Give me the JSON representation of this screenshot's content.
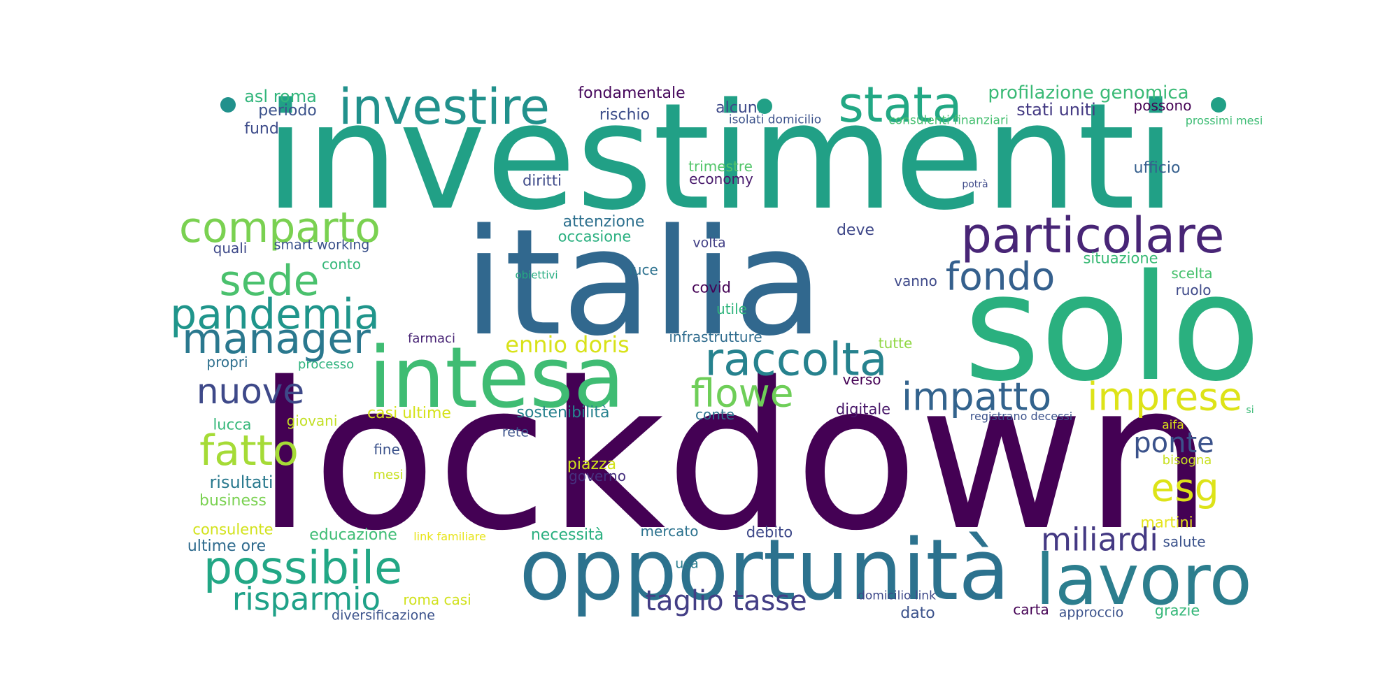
{
  "words": [
    {
      "text": "lockdown",
      "color": "#440154"
    },
    {
      "text": "investimenti",
      "color": "#21a086"
    },
    {
      "text": "italia",
      "color": "#31688e"
    },
    {
      "text": "solo",
      "color": "#2ab07f"
    },
    {
      "text": "opportunità",
      "color": "#2c728e"
    },
    {
      "text": "intesa",
      "color": "#3fbc73"
    },
    {
      "text": "lavoro",
      "color": "#2c7e8e"
    },
    {
      "text": "investire",
      "color": "#21918c"
    },
    {
      "text": "particolare",
      "color": "#482576"
    },
    {
      "text": "stata",
      "color": "#22a884"
    },
    {
      "text": "raccolta",
      "color": "#26828e"
    },
    {
      "text": "possibile",
      "color": "#22a785"
    },
    {
      "text": "comparto",
      "color": "#7ad151"
    },
    {
      "text": "sede",
      "color": "#4ac16d"
    },
    {
      "text": "pandemia",
      "color": "#1f958b"
    },
    {
      "text": "manager",
      "color": "#2a788e"
    },
    {
      "text": "fondo",
      "color": "#35608d"
    },
    {
      "text": "impatto",
      "color": "#33638d"
    },
    {
      "text": "imprese",
      "color": "#dde318"
    },
    {
      "text": "fatto",
      "color": "#a5db36"
    },
    {
      "text": "flowe",
      "color": "#6ece58"
    },
    {
      "text": "nuove",
      "color": "#3e4989"
    },
    {
      "text": "miliardi",
      "color": "#443983"
    },
    {
      "text": "risparmio",
      "color": "#1fa188"
    },
    {
      "text": "esg",
      "color": "#dde318"
    },
    {
      "text": "ponte",
      "color": "#3b528b"
    },
    {
      "text": "taglio tasse",
      "color": "#433e85"
    },
    {
      "text": "ennio doris",
      "color": "#d8e219"
    },
    {
      "text": "profilazione genomica",
      "color": "#3aba76"
    },
    {
      "text": "fondamentale",
      "color": "#46085c"
    },
    {
      "text": "rischio",
      "color": "#3d4e8a"
    },
    {
      "text": "alcuni",
      "color": "#3e4a89"
    },
    {
      "text": "asl roma",
      "color": "#31b57b"
    },
    {
      "text": "periodo",
      "color": "#3b528b"
    },
    {
      "text": "fund",
      "color": "#3e4c8a"
    },
    {
      "text": "isolati domicilio",
      "color": "#3b528b"
    },
    {
      "text": "consulenti finanziari",
      "color": "#45bf70"
    },
    {
      "text": "stati uniti",
      "color": "#443a83"
    },
    {
      "text": "possono",
      "color": "#440154"
    },
    {
      "text": "prossimi mesi",
      "color": "#3dbc74"
    },
    {
      "text": "trimestre",
      "color": "#52c569"
    },
    {
      "text": "economy",
      "color": "#481a6c"
    },
    {
      "text": "ufficio",
      "color": "#355f8d"
    },
    {
      "text": "diritti",
      "color": "#3e4a89"
    },
    {
      "text": "potrà",
      "color": "#3e4989"
    },
    {
      "text": "attenzione",
      "color": "#2d708e"
    },
    {
      "text": "occasione",
      "color": "#29af7f"
    },
    {
      "text": "deve",
      "color": "#3f4889"
    },
    {
      "text": "quali",
      "color": "#3e4989"
    },
    {
      "text": "smart working",
      "color": "#3b528b"
    },
    {
      "text": "volta",
      "color": "#424086"
    },
    {
      "text": "conto",
      "color": "#35b779"
    },
    {
      "text": "obiettivi",
      "color": "#26ad81"
    },
    {
      "text": "luce",
      "color": "#2c718e"
    },
    {
      "text": "situazione",
      "color": "#3aba76"
    },
    {
      "text": "scelta",
      "color": "#48c16e"
    },
    {
      "text": "covid",
      "color": "#440154"
    },
    {
      "text": "vanno",
      "color": "#3e4989"
    },
    {
      "text": "ruolo",
      "color": "#3e4989"
    },
    {
      "text": "utile",
      "color": "#2fb47c"
    },
    {
      "text": "farmaci",
      "color": "#482475"
    },
    {
      "text": "infrastrutture",
      "color": "#2f6c8e"
    },
    {
      "text": "tutte",
      "color": "#90d743"
    },
    {
      "text": "propri",
      "color": "#2e6f8e"
    },
    {
      "text": "processo",
      "color": "#2db27d"
    },
    {
      "text": "verso",
      "color": "#440154"
    },
    {
      "text": "casi ultime",
      "color": "#d5e21a"
    },
    {
      "text": "sostenibilità",
      "color": "#26818e"
    },
    {
      "text": "digitale",
      "color": "#481769"
    },
    {
      "text": "registrano decessi",
      "color": "#3b528b"
    },
    {
      "text": "si",
      "color": "#3aba76"
    },
    {
      "text": "conte",
      "color": "#2c728e"
    },
    {
      "text": "lucca",
      "color": "#35b779"
    },
    {
      "text": "giovani",
      "color": "#c2df23"
    },
    {
      "text": "aifa",
      "color": "#dde318"
    },
    {
      "text": "rete",
      "color": "#3b528b"
    },
    {
      "text": "fine",
      "color": "#3b528b"
    },
    {
      "text": "mesi",
      "color": "#c8e020"
    },
    {
      "text": "piazza",
      "color": "#d2e21b"
    },
    {
      "text": "bisogna",
      "color": "#c8e020"
    },
    {
      "text": "risultati",
      "color": "#29798e"
    },
    {
      "text": "governo",
      "color": "#46307e"
    },
    {
      "text": "business",
      "color": "#7ad151"
    },
    {
      "text": "consulente",
      "color": "#d2e21b"
    },
    {
      "text": "martini",
      "color": "#e5e419"
    },
    {
      "text": "educazione",
      "color": "#3dbc74"
    },
    {
      "text": "link familiare",
      "color": "#e7e419"
    },
    {
      "text": "necessità",
      "color": "#29af7f"
    },
    {
      "text": "mercato",
      "color": "#2c728e"
    },
    {
      "text": "debito",
      "color": "#3e4989"
    },
    {
      "text": "ultime ore",
      "color": "#2f6b8e"
    },
    {
      "text": "salute",
      "color": "#3b528b"
    },
    {
      "text": "usa",
      "color": "#287c8e"
    },
    {
      "text": "domicilio link",
      "color": "#3e4989"
    },
    {
      "text": "roma casi",
      "color": "#d0e11c"
    },
    {
      "text": "dato",
      "color": "#3b528b"
    },
    {
      "text": "carta",
      "color": "#440154"
    },
    {
      "text": "approccio",
      "color": "#3b528b"
    },
    {
      "text": "grazie",
      "color": "#35b779"
    },
    {
      "text": "diversificazione",
      "color": "#3b528b"
    }
  ]
}
